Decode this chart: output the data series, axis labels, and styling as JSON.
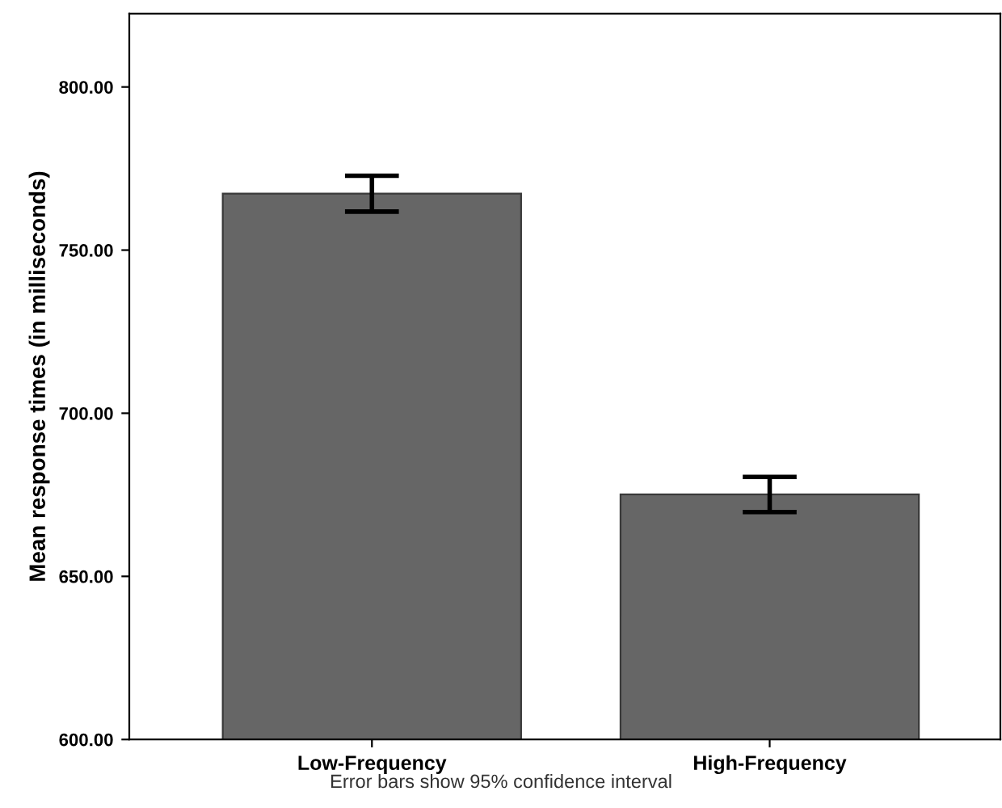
{
  "chart_data": {
    "type": "bar",
    "ylabel": "Mean response times (in milliseconds)",
    "categories": [
      "Low-Frequency",
      "High-Frequency"
    ],
    "values": [
      767.3,
      675.1
    ],
    "errors": [
      5.5,
      5.4
    ],
    "color": "#666666",
    "ylim": [
      600,
      822.5
    ],
    "yticks": [
      {
        "value": 600,
        "label": "600.00"
      },
      {
        "value": 650,
        "label": "650.00"
      },
      {
        "value": 700,
        "label": "700.00"
      },
      {
        "value": 750,
        "label": "750.00"
      },
      {
        "value": 800,
        "label": "800.00"
      }
    ],
    "grid": false,
    "annotations": [
      "Error bars show 95% confidence interval"
    ]
  }
}
